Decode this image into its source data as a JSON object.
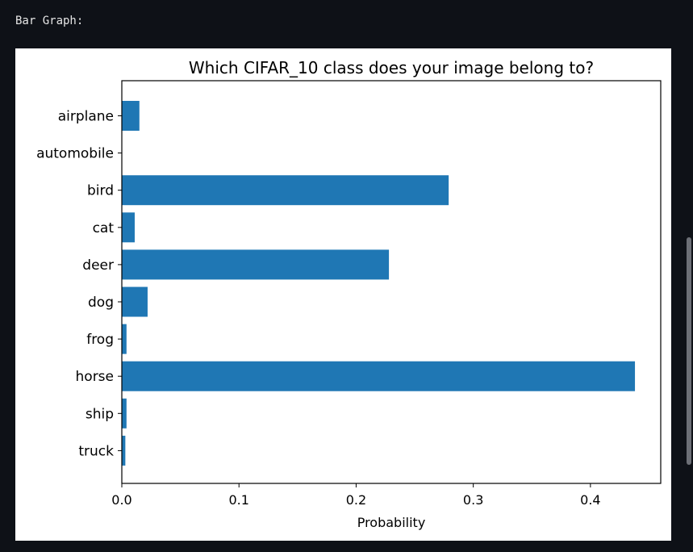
{
  "output": {
    "label": "Bar Graph:"
  },
  "colors": {
    "background": "#0e1117",
    "bar": "#1f77b4",
    "scrollbar_thumb": "#6c6f76"
  },
  "chart_data": {
    "type": "bar",
    "orientation": "horizontal",
    "title": "Which CIFAR_10 class does your image belong to?",
    "xlabel": "Probability",
    "ylabel": "",
    "categories": [
      "airplane",
      "automobile",
      "bird",
      "cat",
      "deer",
      "dog",
      "frog",
      "horse",
      "ship",
      "truck"
    ],
    "values": [
      0.015,
      0.0,
      0.279,
      0.011,
      0.228,
      0.022,
      0.004,
      0.438,
      0.004,
      0.003
    ],
    "xlim": [
      0,
      0.46
    ],
    "xticks": [
      0.0,
      0.1,
      0.2,
      0.3,
      0.4
    ],
    "xtick_labels": [
      "0.0",
      "0.1",
      "0.2",
      "0.3",
      "0.4"
    ],
    "grid": false,
    "legend": "none"
  }
}
